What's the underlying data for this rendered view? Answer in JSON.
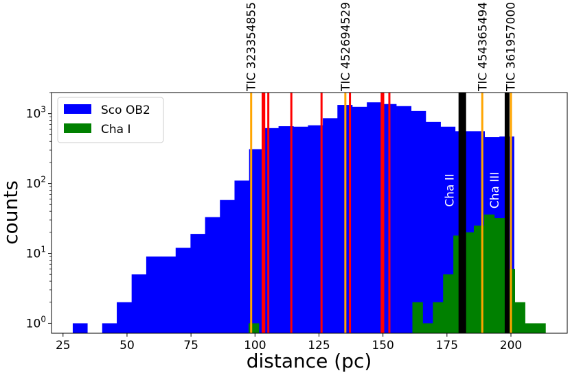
{
  "chart_data": {
    "type": "bar",
    "title": "",
    "xlabel": "distance (pc)",
    "ylabel": "counts",
    "yscale": "log",
    "xlim": [
      20.5,
      222
    ],
    "ylim": [
      0.72,
      2000
    ],
    "grid": false,
    "legend_position": "top-left",
    "x_ticks": [
      25,
      50,
      75,
      100,
      125,
      150,
      175,
      200
    ],
    "y_ticks": [
      {
        "value": 1,
        "base": "10",
        "exp": "0"
      },
      {
        "value": 10,
        "base": "10",
        "exp": "1"
      },
      {
        "value": 100,
        "base": "10",
        "exp": "2"
      },
      {
        "value": 1000,
        "base": "10",
        "exp": "3"
      }
    ],
    "series": [
      {
        "name": "Sco OB2",
        "color": "#0000ff",
        "bin_edges": [
          28.8,
          34.5,
          40.3,
          46.0,
          51.8,
          57.5,
          63.3,
          69.0,
          74.8,
          80.5,
          86.3,
          92.0,
          97.7,
          103.5,
          109.2,
          115.0,
          120.7,
          126.5,
          132.2,
          138.0,
          143.7,
          149.5,
          155.2,
          161.0,
          166.7,
          172.5,
          178.2,
          184.0,
          189.7,
          195.5,
          201.2
        ],
        "values": [
          1,
          0,
          1,
          2,
          5,
          9,
          9,
          12,
          19,
          33,
          58,
          110,
          310,
          620,
          660,
          650,
          680,
          860,
          1330,
          1250,
          1450,
          1370,
          1280,
          1090,
          760,
          650,
          560,
          560,
          460,
          470
        ]
      },
      {
        "name": "Cha I",
        "color": "#008000",
        "bin_edges": [
          97.5,
          101.5,
          105.5,
          109.5,
          113.5,
          117.5,
          121.5,
          125.5,
          129.5,
          133.5,
          137.5,
          141.5,
          145.5,
          149.5,
          153.5,
          157.5,
          161.5,
          165.5,
          169.5,
          173.5,
          177.5,
          181.5,
          185.5,
          189.5,
          193.5,
          197.5,
          201.5,
          205.5,
          209.5,
          213.5
        ],
        "values": [
          1,
          0,
          0,
          0,
          0,
          0,
          0,
          0,
          0,
          0,
          0,
          0,
          0,
          0,
          0,
          0,
          2,
          1,
          2,
          5,
          18,
          20,
          25,
          36,
          32,
          6,
          2,
          1,
          1
        ]
      }
    ],
    "vertical_lines": [
      {
        "x": 98.5,
        "color": "#ffa500",
        "width": 3
      },
      {
        "x": 103.0,
        "color": "#ff0000",
        "width": 3
      },
      {
        "x": 103.6,
        "color": "#ff0000",
        "width": 3
      },
      {
        "x": 105.2,
        "color": "#ff0000",
        "width": 3
      },
      {
        "x": 114.2,
        "color": "#ff0000",
        "width": 3
      },
      {
        "x": 126.0,
        "color": "#ff0000",
        "width": 3
      },
      {
        "x": 135.3,
        "color": "#ffa500",
        "width": 3
      },
      {
        "x": 137.1,
        "color": "#ff0000",
        "width": 3
      },
      {
        "x": 149.5,
        "color": "#ff0000",
        "width": 3
      },
      {
        "x": 150.1,
        "color": "#ff0000",
        "width": 3
      },
      {
        "x": 152.5,
        "color": "#ff0000",
        "width": 3
      },
      {
        "x": 181.0,
        "color": "#000000",
        "width": 11
      },
      {
        "x": 188.8,
        "color": "#ffa500",
        "width": 3
      },
      {
        "x": 198.5,
        "color": "#000000",
        "width": 7
      },
      {
        "x": 200.0,
        "color": "#ffa500",
        "width": 3
      }
    ],
    "tic_labels": [
      {
        "x": 98.5,
        "text": "TIC 323354855"
      },
      {
        "x": 135.3,
        "text": "TIC 452694529"
      },
      {
        "x": 188.8,
        "text": "TIC 454365494"
      },
      {
        "x": 199.8,
        "text": "TIC 361957000"
      }
    ],
    "region_labels": [
      {
        "x": 176.0,
        "y": 80,
        "text": "Cha II"
      },
      {
        "x": 193.5,
        "y": 80,
        "text": "Cha III"
      }
    ]
  }
}
